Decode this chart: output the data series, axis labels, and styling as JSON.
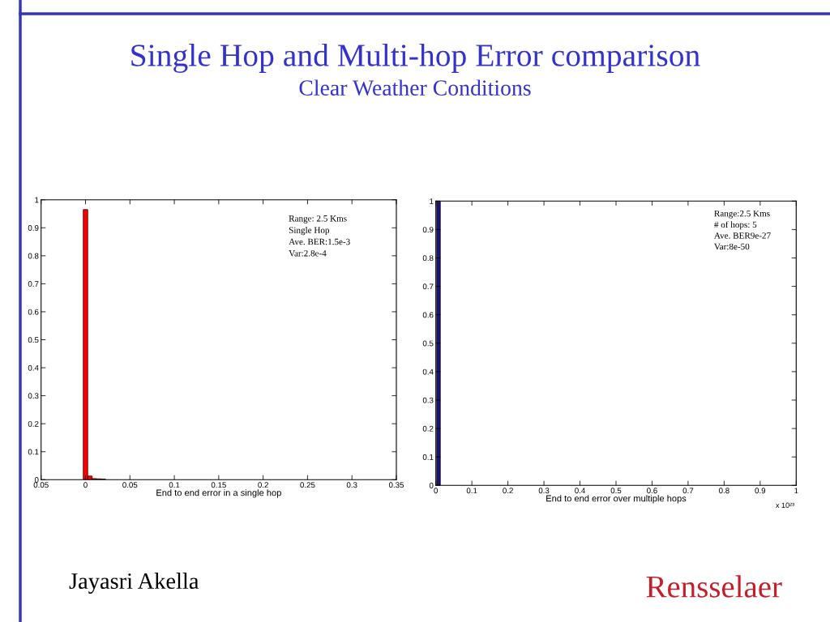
{
  "chart_data": [
    {
      "type": "other",
      "title": "Single Hop and Multi-hop Error comparison",
      "subtitle": "Clear Weather Conditions"
    },
    {
      "type": "histogram",
      "xlabel": "End to end error in a single hop",
      "bins": [
        -0.0025,
        0.0025,
        0.0075,
        0.0125,
        0.0175,
        0.0225
      ],
      "values": [
        0.965,
        0.013,
        0.004,
        0.003,
        0.002
      ],
      "color": "#ff0000",
      "xlim": [
        -0.05,
        0.35
      ],
      "xticks": [
        {
          "value": -0.05,
          "label": "0.05"
        },
        0,
        0.05,
        0.1,
        0.15,
        0.2,
        0.25,
        0.3,
        0.35
      ],
      "ylim": [
        0,
        1
      ],
      "yticks": [
        0,
        0.1,
        0.2,
        0.3,
        0.4,
        0.5,
        0.6,
        0.7,
        0.8,
        0.9,
        1
      ],
      "annotations": [
        "Range: 2.5 Kms\nSingle Hop\nAve. BER:1.5e-3\nVar:2.8e-4"
      ]
    },
    {
      "type": "histogram",
      "xlabel": "End to end error over multiple hops",
      "bins": [
        0.0025,
        0.0125
      ],
      "values": [
        1.0
      ],
      "color": "#0a1a80",
      "xlim": [
        0,
        1
      ],
      "xticks": [
        0,
        0.1,
        0.2,
        0.3,
        0.4,
        0.5,
        0.6,
        0.7,
        0.8,
        0.9,
        1
      ],
      "ylim": [
        0,
        1
      ],
      "yticks": [
        0,
        0.1,
        0.2,
        0.3,
        0.4,
        0.5,
        0.6,
        0.7,
        0.8,
        0.9,
        1
      ],
      "annotations": [
        "Range:2.5 Kms\n# of hops: 5\nAve. BER9e-27\nVar:8e-50",
        "x 10²³"
      ]
    },
    {
      "type": "other",
      "annotations": [
        "Jayasri Akella",
        "Rensselaer"
      ]
    }
  ]
}
